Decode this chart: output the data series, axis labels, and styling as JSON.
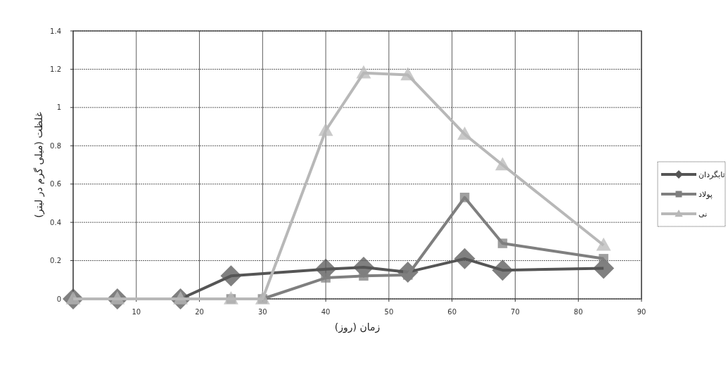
{
  "chart_data": {
    "type": "line",
    "xlabel": "زمان (روز)",
    "ylabel": "غلظت (میلی گرم در لیتر)",
    "xlim": [
      0,
      90
    ],
    "xticks": [
      {
        "value": 0,
        "label": null
      },
      10,
      20,
      30,
      40,
      50,
      60,
      70,
      80,
      90
    ],
    "ylim": [
      0,
      1.4
    ],
    "yticks": [
      0,
      0.2,
      0.4,
      0.6,
      0.8,
      1,
      1.2,
      1.4
    ],
    "grid": true,
    "legend": "right",
    "series": [
      {
        "name": "تابگردان",
        "color": "#555555",
        "marker": "diamond",
        "x": [
          0,
          7,
          17,
          25,
          40,
          46,
          53,
          62,
          68,
          84
        ],
        "values": [
          0,
          0,
          0,
          0.12,
          0.155,
          0.165,
          0.14,
          0.21,
          0.15,
          0.16
        ]
      },
      {
        "name": "پولاد",
        "color": "#7f7f7f",
        "marker": "square",
        "x": [
          0,
          7,
          17,
          25,
          30,
          40,
          46,
          53,
          62,
          68,
          84
        ],
        "values": [
          0,
          0,
          0,
          0,
          0,
          0.11,
          0.12,
          0.125,
          0.53,
          0.29,
          0.21
        ]
      },
      {
        "name": "نی",
        "color": "#b8b8b8",
        "marker": "triangle",
        "x": [
          0,
          7,
          17,
          25,
          30,
          40,
          46,
          53,
          62,
          68,
          84
        ],
        "values": [
          0,
          0,
          0,
          0,
          0,
          0.88,
          1.18,
          1.17,
          0.86,
          0.7,
          0.28
        ]
      }
    ]
  }
}
